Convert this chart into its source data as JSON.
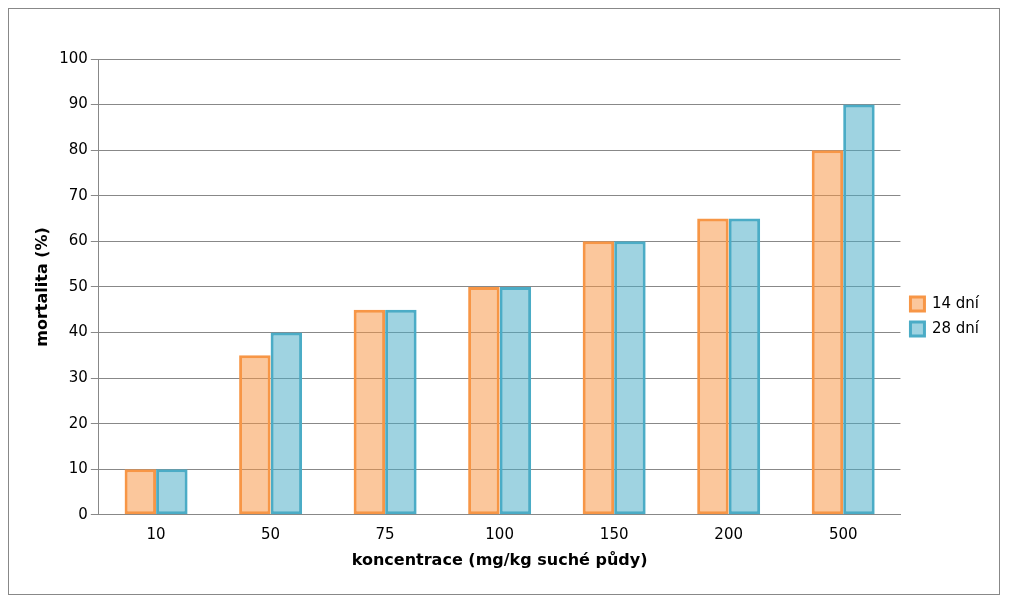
{
  "chart_data": {
    "type": "bar",
    "xlabel": "koncentrace (mg/kg suché půdy)",
    "ylabel": "mortalita (%)",
    "categories": [
      "10",
      "50",
      "75",
      "100",
      "150",
      "200",
      "500"
    ],
    "series": [
      {
        "name": "14 dní",
        "color": "#f79646",
        "values": [
          10,
          35,
          45,
          50,
          60,
          65,
          80
        ]
      },
      {
        "name": "28 dní",
        "color": "#4bacc6",
        "values": [
          10,
          40,
          45,
          50,
          60,
          65,
          90
        ]
      }
    ],
    "ylim": [
      0,
      100
    ],
    "yticks": [
      0,
      10,
      20,
      30,
      40,
      50,
      60,
      70,
      80,
      90,
      100
    ],
    "grid": "y",
    "legend": "right"
  }
}
